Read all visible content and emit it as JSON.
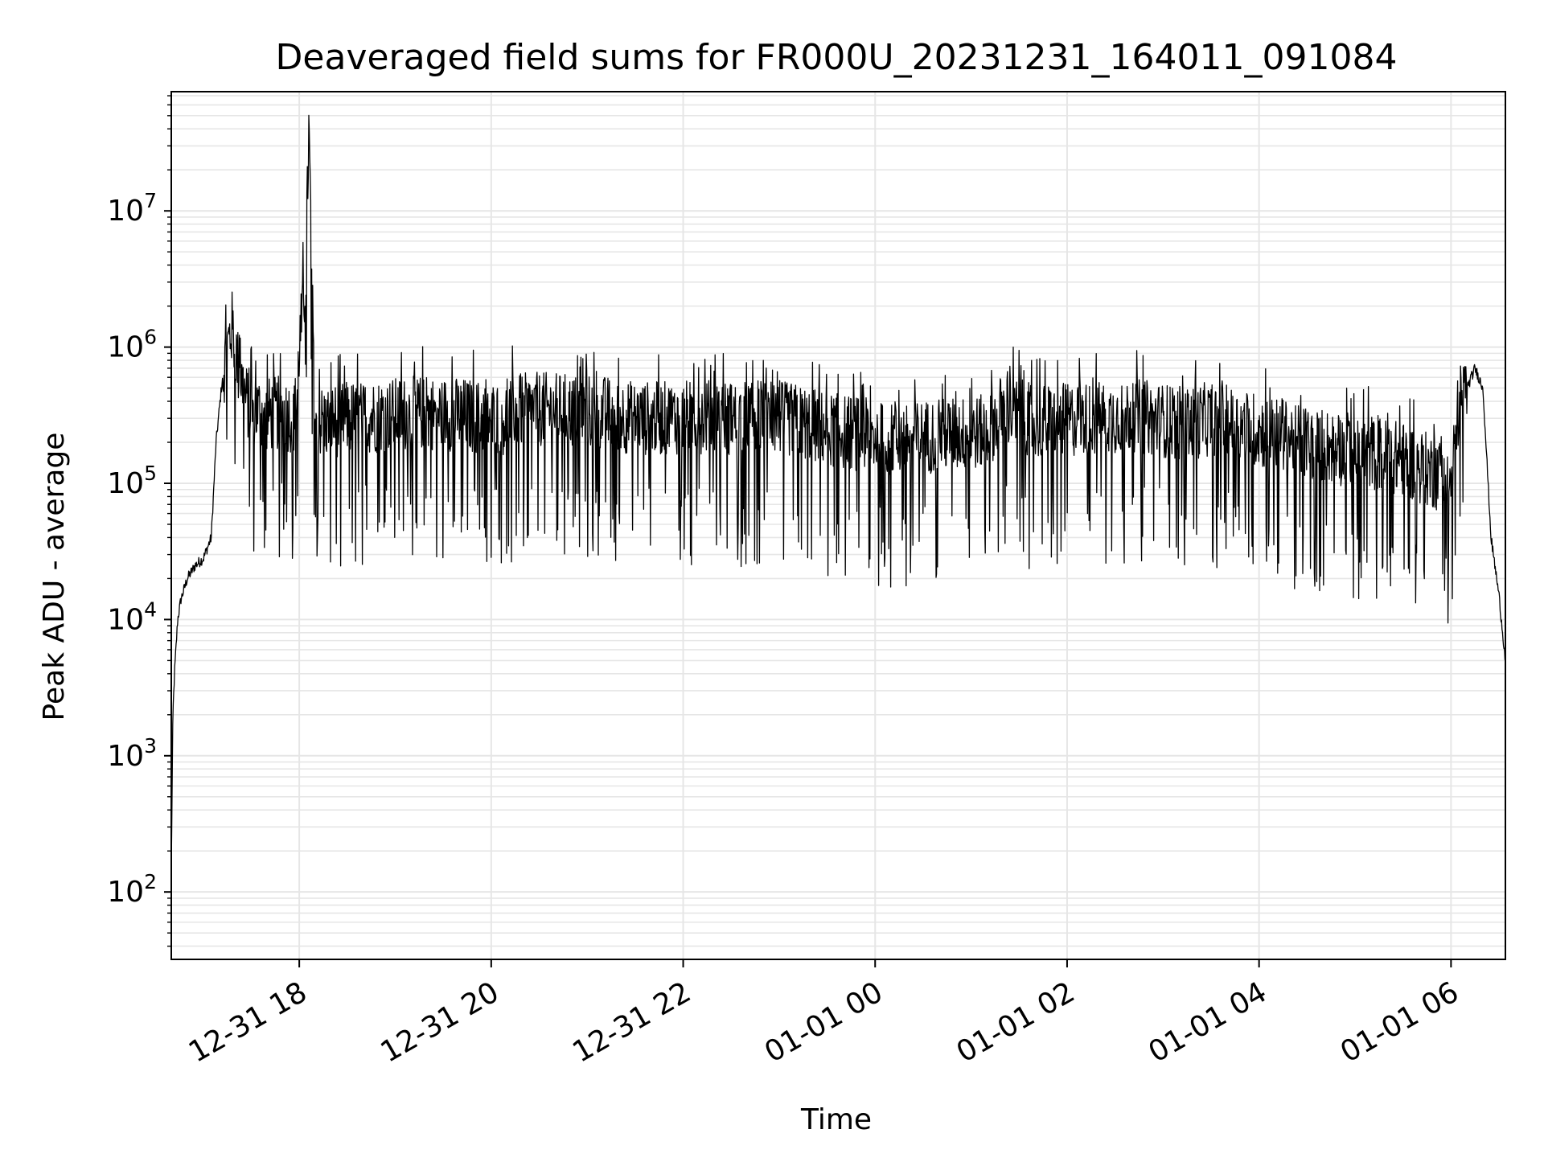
{
  "chart_data": {
    "type": "line",
    "title": "Deaveraged field sums for FR000U_20231231_164011_091084",
    "xlabel": "Time",
    "ylabel": "Peak ADU - average",
    "yscale": "log",
    "ylim": [
      32,
      75000000
    ],
    "xlim": [
      "2023-12-31 16:40",
      "2024-01-01 06:34"
    ],
    "grid": true,
    "legend": "none",
    "line_color": "#000000",
    "grid_color": "#e6e6e6",
    "x_ticks": [
      {
        "value": "2023-12-31 18:00",
        "label": "12-31 18"
      },
      {
        "value": "2023-12-31 20:00",
        "label": "12-31 20"
      },
      {
        "value": "2023-12-31 22:00",
        "label": "12-31 22"
      },
      {
        "value": "2024-01-01 00:00",
        "label": "01-01 00"
      },
      {
        "value": "2024-01-01 02:00",
        "label": "01-01 02"
      },
      {
        "value": "2024-01-01 04:00",
        "label": "01-01 04"
      },
      {
        "value": "2024-01-01 06:00",
        "label": "01-01 06"
      }
    ],
    "y_ticks": [
      {
        "value": 100,
        "base": "10",
        "exp": "2"
      },
      {
        "value": 1000,
        "base": "10",
        "exp": "3"
      },
      {
        "value": 10000,
        "base": "10",
        "exp": "4"
      },
      {
        "value": 100000,
        "base": "10",
        "exp": "5"
      },
      {
        "value": 1000000,
        "base": "10",
        "exp": "6"
      },
      {
        "value": 10000000,
        "base": "10",
        "exp": "7"
      }
    ],
    "series": [
      {
        "x": [
          "2023-12-31 16:40",
          "2023-12-31 16:41",
          "2023-12-31 16:42",
          "2023-12-31 16:44",
          "2023-12-31 16:46",
          "2023-12-31 16:50",
          "2023-12-31 16:55",
          "2023-12-31 17:00",
          "2023-12-31 17:05",
          "2023-12-31 17:08",
          "2023-12-31 17:12",
          "2023-12-31 17:15",
          "2023-12-31 17:18",
          "2023-12-31 17:22",
          "2023-12-31 17:27",
          "2023-12-31 17:32",
          "2023-12-31 17:40",
          "2023-12-31 17:50",
          "2023-12-31 17:58",
          "2023-12-31 18:00",
          "2023-12-31 18:04",
          "2023-12-31 18:06",
          "2023-12-31 18:08",
          "2023-12-31 18:10",
          "2023-12-31 18:15",
          "2023-12-31 18:30",
          "2023-12-31 18:45",
          "2023-12-31 19:00",
          "2023-12-31 19:20",
          "2023-12-31 19:40",
          "2023-12-31 20:00",
          "2023-12-31 20:08",
          "2023-12-31 20:15",
          "2023-12-31 20:30",
          "2023-12-31 20:50",
          "2023-12-31 21:10",
          "2023-12-31 21:30",
          "2023-12-31 21:50",
          "2023-12-31 22:10",
          "2023-12-31 22:30",
          "2023-12-31 22:50",
          "2023-12-31 23:10",
          "2023-12-31 23:30",
          "2023-12-31 23:50",
          "2024-01-01 00:10",
          "2024-01-01 00:30",
          "2024-01-01 00:50",
          "2024-01-01 01:10",
          "2024-01-01 01:20",
          "2024-01-01 01:40",
          "2024-01-01 02:00",
          "2024-01-01 02:20",
          "2024-01-01 02:40",
          "2024-01-01 03:00",
          "2024-01-01 03:15",
          "2024-01-01 03:30",
          "2024-01-01 03:50",
          "2024-01-01 04:10",
          "2024-01-01 04:30",
          "2024-01-01 04:50",
          "2024-01-01 05:10",
          "2024-01-01 05:30",
          "2024-01-01 05:50",
          "2024-01-01 06:00",
          "2024-01-01 06:05",
          "2024-01-01 06:10",
          "2024-01-01 06:15",
          "2024-01-01 06:20",
          "2024-01-01 06:25",
          "2024-01-01 06:30",
          "2024-01-01 06:34"
        ],
        "y": [
          140,
          2000,
          4000,
          10000,
          14000,
          20000,
          25000,
          28000,
          40000,
          200000,
          600000,
          1000000,
          1400000,
          700000,
          400000,
          350000,
          320000,
          330000,
          300000,
          1000000,
          3000000,
          40000000,
          3000000,
          300000,
          280000,
          300000,
          310000,
          320000,
          330000,
          320000,
          300000,
          300000,
          340000,
          350000,
          340000,
          330000,
          300000,
          300000,
          310000,
          300000,
          310000,
          290000,
          250000,
          230000,
          210000,
          220000,
          230000,
          240000,
          350000,
          280000,
          290000,
          300000,
          320000,
          290000,
          270000,
          300000,
          260000,
          230000,
          200000,
          180000,
          170000,
          150000,
          120000,
          100000,
          400000,
          500000,
          700000,
          500000,
          40000,
          15000,
          5000
        ]
      }
    ]
  }
}
